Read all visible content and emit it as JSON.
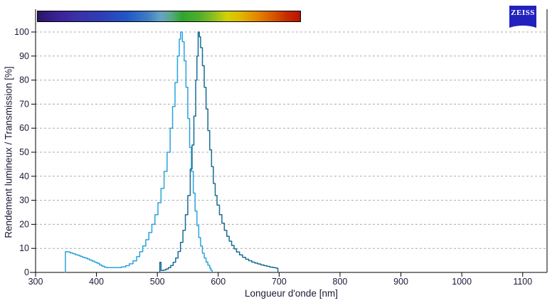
{
  "logo": {
    "text": "ZEISS",
    "background": "#2121BE",
    "text_color": "#FFFFFF"
  },
  "colors": {
    "background": "#FFFFFF",
    "grid": "#ABABAB",
    "axis": "#000000",
    "tick_label": "#1A1A38",
    "light_curve": "#29A3DC",
    "dark_curve": "#186C96"
  },
  "chart_data": {
    "type": "line",
    "title": "",
    "xlabel": "Longueur d'onde [nm]",
    "ylabel": "Rendement lumineux / Transmission [%]",
    "xlim": [
      300,
      1140
    ],
    "ylim": [
      0,
      100
    ],
    "x_ticks": [
      300,
      400,
      500,
      600,
      700,
      800,
      900,
      1000,
      1100
    ],
    "y_ticks": [
      0,
      10,
      20,
      30,
      40,
      50,
      60,
      70,
      80,
      90,
      100
    ],
    "grid": "horizontal-dashed",
    "legend_position": "none",
    "series": [
      {
        "name": "light-blue-curve",
        "color": "#29A3DC",
        "peak_nm": 538,
        "points": [
          [
            348,
            0
          ],
          [
            349,
            8.6
          ],
          [
            353,
            8.5
          ],
          [
            357,
            8.1
          ],
          [
            361,
            7.8
          ],
          [
            365,
            7.4
          ],
          [
            369,
            7.1
          ],
          [
            373,
            6.7
          ],
          [
            377,
            6.3
          ],
          [
            381,
            6.0
          ],
          [
            385,
            5.6
          ],
          [
            389,
            5.1
          ],
          [
            393,
            4.7
          ],
          [
            397,
            4.2
          ],
          [
            401,
            3.8
          ],
          [
            405,
            3.1
          ],
          [
            409,
            2.6
          ],
          [
            413,
            2.2
          ],
          [
            417,
            2.0
          ],
          [
            425,
            2.0
          ],
          [
            433,
            2.0
          ],
          [
            441,
            2.3
          ],
          [
            448,
            2.8
          ],
          [
            454,
            3.6
          ],
          [
            460,
            4.8
          ],
          [
            466,
            6.6
          ],
          [
            471,
            8.6
          ],
          [
            476,
            11
          ],
          [
            481,
            13.6
          ],
          [
            486,
            16.6
          ],
          [
            491,
            20
          ],
          [
            496,
            24
          ],
          [
            501,
            29
          ],
          [
            506,
            35
          ],
          [
            511,
            42
          ],
          [
            516,
            50
          ],
          [
            521,
            60
          ],
          [
            525,
            69
          ],
          [
            529,
            79
          ],
          [
            533,
            90
          ],
          [
            536,
            97
          ],
          [
            538,
            100
          ],
          [
            541,
            96
          ],
          [
            544,
            88
          ],
          [
            547,
            77
          ],
          [
            550,
            64
          ],
          [
            553,
            52
          ],
          [
            556,
            42
          ],
          [
            559,
            33
          ],
          [
            562,
            25.5
          ],
          [
            565,
            19.5
          ],
          [
            568,
            14.5
          ],
          [
            571,
            11
          ],
          [
            574,
            8
          ],
          [
            577,
            6
          ],
          [
            580,
            4.3
          ],
          [
            583,
            3
          ],
          [
            586,
            1.8
          ],
          [
            588,
            0.9
          ],
          [
            590,
            0
          ]
        ]
      },
      {
        "name": "dark-blue-curve",
        "color": "#186C96",
        "peak_nm": 567,
        "points": [
          [
            503,
            0.2
          ],
          [
            504,
            4.2
          ],
          [
            506,
            0.8
          ],
          [
            510,
            1.0
          ],
          [
            514,
            1.4
          ],
          [
            518,
            2.0
          ],
          [
            522,
            2.9
          ],
          [
            526,
            4.2
          ],
          [
            530,
            6.0
          ],
          [
            534,
            8.7
          ],
          [
            538,
            12.5
          ],
          [
            542,
            17.5
          ],
          [
            546,
            24
          ],
          [
            550,
            32
          ],
          [
            554,
            43
          ],
          [
            557,
            53
          ],
          [
            560,
            65
          ],
          [
            563,
            80
          ],
          [
            565,
            90
          ],
          [
            567,
            100
          ],
          [
            569,
            98
          ],
          [
            571,
            93.5
          ],
          [
            574,
            86
          ],
          [
            577,
            77
          ],
          [
            580,
            68
          ],
          [
            583,
            59
          ],
          [
            586,
            51
          ],
          [
            589,
            44
          ],
          [
            592,
            37
          ],
          [
            595,
            32
          ],
          [
            598,
            28
          ],
          [
            602,
            24
          ],
          [
            606,
            20.5
          ],
          [
            610,
            17.5
          ],
          [
            614,
            15
          ],
          [
            618,
            13
          ],
          [
            622,
            11.2
          ],
          [
            626,
            9.8
          ],
          [
            630,
            8.5
          ],
          [
            635,
            7.3
          ],
          [
            640,
            6.3
          ],
          [
            645,
            5.5
          ],
          [
            650,
            4.9
          ],
          [
            655,
            4.3
          ],
          [
            660,
            3.9
          ],
          [
            665,
            3.5
          ],
          [
            670,
            3.1
          ],
          [
            675,
            2.8
          ],
          [
            680,
            2.5
          ],
          [
            685,
            2.2
          ],
          [
            690,
            2.0
          ],
          [
            694,
            1.85
          ],
          [
            697,
            1.7
          ],
          [
            698,
            0
          ]
        ]
      }
    ],
    "spectrum_colorbar": {
      "start_nm": 302,
      "end_nm": 736,
      "stops": [
        {
          "pos": 0,
          "color": "#2B1566"
        },
        {
          "pos": 7,
          "color": "#3A2193"
        },
        {
          "pos": 14,
          "color": "#3D2FA4"
        },
        {
          "pos": 24,
          "color": "#2F3DB5"
        },
        {
          "pos": 34,
          "color": "#2356C6"
        },
        {
          "pos": 42,
          "color": "#3F7DC2"
        },
        {
          "pos": 47,
          "color": "#66A3C4"
        },
        {
          "pos": 51,
          "color": "#55AA82"
        },
        {
          "pos": 55,
          "color": "#2FA52F"
        },
        {
          "pos": 62,
          "color": "#52B02A"
        },
        {
          "pos": 67,
          "color": "#8CBE22"
        },
        {
          "pos": 72,
          "color": "#D2D205"
        },
        {
          "pos": 77,
          "color": "#E2B800"
        },
        {
          "pos": 83,
          "color": "#E28C00"
        },
        {
          "pos": 89,
          "color": "#D85C00"
        },
        {
          "pos": 95,
          "color": "#C72C00"
        },
        {
          "pos": 100,
          "color": "#B81400"
        }
      ]
    }
  }
}
